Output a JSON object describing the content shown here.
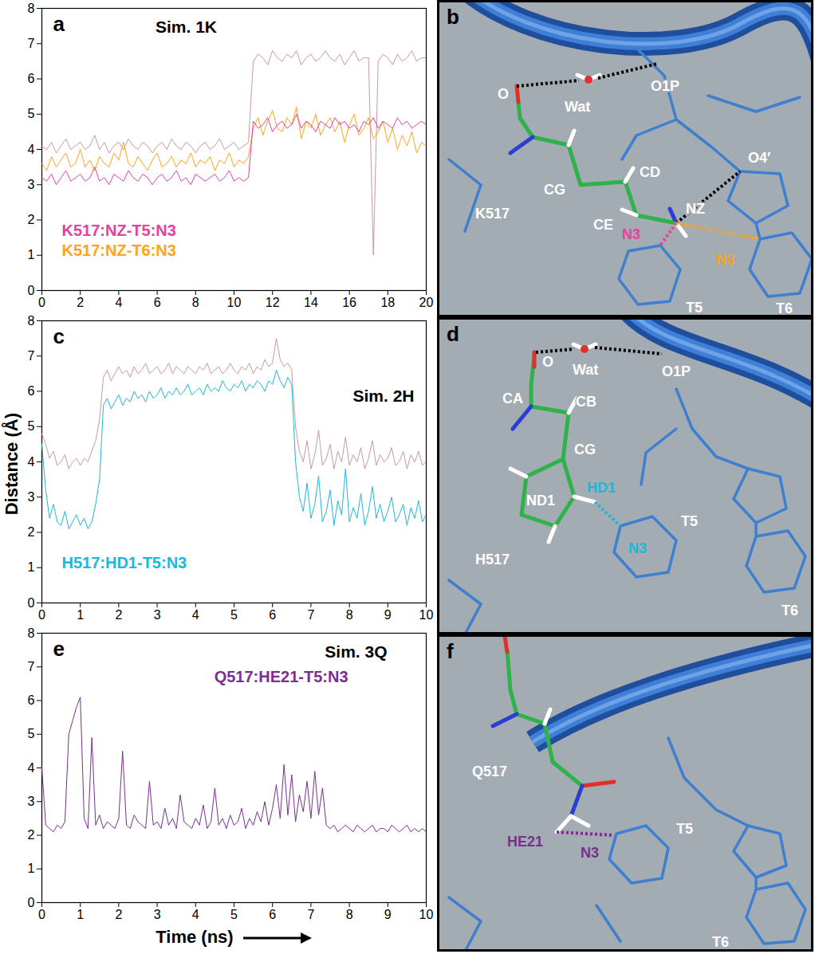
{
  "chart_data": [
    {
      "type": "line",
      "letter": "a",
      "title": "Sim. 1K",
      "x": [
        0,
        0.25,
        0.5,
        0.75,
        1,
        1.25,
        1.5,
        1.75,
        2,
        2.25,
        2.5,
        2.75,
        3,
        3.25,
        3.5,
        3.75,
        4,
        4.25,
        4.5,
        4.75,
        5,
        5.25,
        5.5,
        5.75,
        6,
        6.25,
        6.5,
        6.75,
        7,
        7.25,
        7.5,
        7.75,
        8,
        8.25,
        8.5,
        8.75,
        9,
        9.25,
        9.5,
        9.75,
        10,
        10.25,
        10.5,
        10.75,
        11,
        11.25,
        11.5,
        11.75,
        12,
        12.25,
        12.5,
        12.75,
        13,
        13.25,
        13.5,
        13.75,
        14,
        14.25,
        14.5,
        14.75,
        15,
        15.25,
        15.5,
        15.75,
        16,
        16.25,
        16.5,
        16.75,
        17,
        17.25,
        17.5,
        17.75,
        18,
        18.25,
        18.5,
        18.75,
        19,
        19.25,
        19.5,
        19.75,
        20
      ],
      "xlim": [
        0,
        20
      ],
      "xticks": [
        0,
        2,
        4,
        6,
        8,
        10,
        12,
        14,
        16,
        18,
        20
      ],
      "ylim": [
        0,
        8
      ],
      "yticks": [
        0,
        1,
        2,
        3,
        4,
        5,
        6,
        7,
        8
      ],
      "legend": "bottom-left",
      "series": [
        {
          "name": "K517:NZ-T5:N3",
          "color": "#e8409f",
          "values": [
            3.2,
            3.1,
            3.3,
            3.0,
            3.2,
            3.4,
            3.1,
            3.2,
            3.3,
            3.1,
            3.2,
            3.5,
            3.1,
            3.2,
            3.0,
            3.3,
            3.2,
            3.1,
            3.4,
            3.2,
            3.1,
            3.3,
            3.2,
            3.0,
            3.2,
            3.3,
            3.1,
            3.2,
            3.4,
            3.1,
            3.2,
            3.0,
            3.3,
            3.2,
            3.1,
            3.2,
            3.3,
            3.1,
            3.2,
            3.4,
            3.1,
            3.2,
            3.1,
            3.2,
            4.8,
            4.6,
            4.7,
            4.9,
            4.5,
            4.7,
            4.8,
            4.6,
            4.7,
            5.0,
            4.6,
            4.8,
            4.7,
            4.5,
            4.8,
            4.7,
            4.6,
            4.9,
            4.7,
            4.8,
            4.6,
            4.7,
            4.5,
            4.8,
            4.7,
            4.9,
            4.6,
            4.8,
            4.7,
            4.6,
            4.9,
            4.7,
            4.8,
            4.6,
            4.7,
            4.8,
            4.7
          ]
        },
        {
          "name": "K517:NZ-T6:N3",
          "color": "#ffa31a",
          "values": [
            3.6,
            3.4,
            3.8,
            3.5,
            3.7,
            3.9,
            3.5,
            3.6,
            4.0,
            3.5,
            3.7,
            3.4,
            3.8,
            3.6,
            3.5,
            3.9,
            3.7,
            4.2,
            3.6,
            3.5,
            3.8,
            3.6,
            3.4,
            3.7,
            3.9,
            3.5,
            3.6,
            3.8,
            3.5,
            3.7,
            3.6,
            3.9,
            3.5,
            3.7,
            3.6,
            3.8,
            3.4,
            3.7,
            3.6,
            3.9,
            3.5,
            3.7,
            3.6,
            3.8,
            4.6,
            4.9,
            4.4,
            4.8,
            5.1,
            4.6,
            4.5,
            4.9,
            4.7,
            5.2,
            4.3,
            4.8,
            4.6,
            5.0,
            4.4,
            4.7,
            4.9,
            4.5,
            4.8,
            4.2,
            4.7,
            5.0,
            4.4,
            4.6,
            4.9,
            4.3,
            4.5,
            4.8,
            4.2,
            4.6,
            4.0,
            4.4,
            4.1,
            4.5,
            3.9,
            4.2,
            4.1
          ]
        },
        {
          "color": "#c9999a",
          "values": [
            4.1,
            4.0,
            4.2,
            3.9,
            4.1,
            4.3,
            4.0,
            4.1,
            4.2,
            4.0,
            4.1,
            4.4,
            4.0,
            4.2,
            3.9,
            4.1,
            4.2,
            4.0,
            4.3,
            4.1,
            4.0,
            4.2,
            4.1,
            3.9,
            4.1,
            4.2,
            4.0,
            4.3,
            4.1,
            4.0,
            4.2,
            4.1,
            3.9,
            4.1,
            4.2,
            4.0,
            4.1,
            4.3,
            4.0,
            4.1,
            4.2,
            4.0,
            4.1,
            4.2,
            6.5,
            6.7,
            6.6,
            6.4,
            6.8,
            6.6,
            6.5,
            6.7,
            6.6,
            6.8,
            6.4,
            6.6,
            6.7,
            6.5,
            6.6,
            6.8,
            6.6,
            6.5,
            6.7,
            6.4,
            6.6,
            6.8,
            6.5,
            6.6,
            6.6,
            1.0,
            6.5,
            6.7,
            6.6,
            6.4,
            6.7,
            6.5,
            6.6,
            6.8,
            6.5,
            6.6,
            6.6
          ]
        }
      ]
    },
    {
      "type": "line",
      "letter": "c",
      "title": "Sim. 2H",
      "y_label": "Distance (Å)",
      "x": [
        0,
        0.1,
        0.2,
        0.3,
        0.4,
        0.5,
        0.6,
        0.7,
        0.8,
        0.9,
        1,
        1.1,
        1.2,
        1.3,
        1.4,
        1.5,
        1.6,
        1.7,
        1.8,
        1.9,
        2,
        2.1,
        2.2,
        2.3,
        2.4,
        2.5,
        2.6,
        2.7,
        2.8,
        2.9,
        3,
        3.1,
        3.2,
        3.3,
        3.4,
        3.5,
        3.6,
        3.7,
        3.8,
        3.9,
        4,
        4.1,
        4.2,
        4.3,
        4.4,
        4.5,
        4.6,
        4.7,
        4.8,
        4.9,
        5,
        5.1,
        5.2,
        5.3,
        5.4,
        5.5,
        5.6,
        5.7,
        5.8,
        5.9,
        6,
        6.1,
        6.2,
        6.3,
        6.4,
        6.5,
        6.6,
        6.7,
        6.8,
        6.9,
        7,
        7.1,
        7.2,
        7.3,
        7.4,
        7.5,
        7.6,
        7.7,
        7.8,
        7.9,
        8,
        8.1,
        8.2,
        8.3,
        8.4,
        8.5,
        8.6,
        8.7,
        8.8,
        8.9,
        9,
        9.1,
        9.2,
        9.3,
        9.4,
        9.5,
        9.6,
        9.7,
        9.8,
        9.9,
        10
      ],
      "xlim": [
        0,
        10
      ],
      "xticks": [
        0,
        1,
        2,
        3,
        4,
        5,
        6,
        7,
        8,
        9,
        10
      ],
      "ylim": [
        0,
        8
      ],
      "yticks": [
        0,
        1,
        2,
        3,
        4,
        5,
        6,
        7,
        8
      ],
      "legend": "bottom-left",
      "series": [
        {
          "name": "H517:HD1-T5:N3",
          "color": "#1bb8d9",
          "values": [
            4.5,
            3.2,
            2.4,
            2.8,
            2.3,
            2.2,
            2.6,
            2.1,
            2.3,
            2.5,
            2.2,
            2.4,
            2.1,
            2.3,
            2.8,
            3.5,
            5.6,
            5.8,
            5.5,
            5.7,
            5.9,
            5.6,
            5.8,
            5.7,
            6.0,
            5.8,
            5.9,
            5.7,
            6.0,
            5.8,
            5.9,
            6.1,
            5.8,
            6.0,
            5.9,
            6.1,
            5.9,
            6.0,
            6.2,
            5.9,
            6.0,
            6.1,
            5.9,
            6.2,
            6.0,
            6.1,
            6.0,
            6.3,
            6.1,
            6.0,
            6.2,
            6.1,
            6.3,
            6.0,
            6.2,
            6.1,
            6.3,
            6.2,
            6.0,
            6.3,
            6.2,
            6.6,
            6.3,
            6.1,
            6.4,
            6.2,
            4.0,
            3.0,
            2.6,
            3.4,
            2.4,
            2.8,
            3.6,
            2.3,
            2.6,
            3.2,
            2.2,
            2.9,
            2.5,
            3.8,
            2.3,
            2.7,
            2.4,
            3.1,
            2.2,
            2.6,
            3.3,
            2.4,
            2.8,
            2.3,
            2.6,
            3.0,
            2.3,
            2.5,
            2.8,
            2.2,
            2.7,
            2.4,
            2.9,
            2.3,
            2.5
          ]
        },
        {
          "color": "#c9999a",
          "values": [
            4.8,
            4.5,
            4.1,
            4.3,
            3.9,
            4.0,
            4.2,
            3.8,
            4.0,
            4.1,
            3.9,
            4.1,
            4.0,
            4.3,
            4.6,
            5.2,
            6.4,
            6.6,
            6.3,
            6.5,
            6.7,
            6.5,
            6.6,
            6.4,
            6.7,
            6.5,
            6.6,
            6.8,
            6.5,
            6.6,
            6.7,
            6.5,
            6.6,
            6.8,
            6.5,
            6.7,
            6.6,
            6.5,
            6.7,
            6.6,
            6.5,
            6.7,
            6.6,
            6.8,
            6.5,
            6.6,
            6.7,
            6.5,
            6.6,
            6.8,
            6.6,
            6.5,
            6.7,
            6.6,
            6.8,
            6.5,
            6.7,
            6.6,
            6.9,
            6.7,
            6.8,
            7.5,
            6.9,
            6.7,
            6.8,
            6.6,
            5.0,
            4.3,
            4.0,
            4.6,
            3.8,
            4.2,
            4.9,
            3.9,
            4.1,
            4.5,
            3.8,
            4.3,
            4.0,
            4.7,
            3.9,
            4.2,
            4.0,
            4.4,
            3.8,
            4.1,
            4.6,
            3.9,
            4.2,
            4.0,
            4.1,
            4.4,
            3.9,
            4.0,
            4.3,
            3.8,
            4.2,
            4.0,
            4.3,
            3.9,
            4.0
          ]
        }
      ]
    },
    {
      "type": "line",
      "letter": "e",
      "title": "Sim. 3Q",
      "x_label": "Time (ns)",
      "x": [
        0,
        0.1,
        0.2,
        0.3,
        0.4,
        0.5,
        0.6,
        0.7,
        0.8,
        0.9,
        1,
        1.1,
        1.2,
        1.3,
        1.4,
        1.5,
        1.6,
        1.7,
        1.8,
        1.9,
        2,
        2.1,
        2.2,
        2.3,
        2.4,
        2.5,
        2.6,
        2.7,
        2.8,
        2.9,
        3,
        3.1,
        3.2,
        3.3,
        3.4,
        3.5,
        3.6,
        3.7,
        3.8,
        3.9,
        4,
        4.1,
        4.2,
        4.3,
        4.4,
        4.5,
        4.6,
        4.7,
        4.8,
        4.9,
        5,
        5.1,
        5.2,
        5.3,
        5.4,
        5.5,
        5.6,
        5.7,
        5.8,
        5.9,
        6,
        6.1,
        6.2,
        6.3,
        6.4,
        6.5,
        6.6,
        6.7,
        6.8,
        6.9,
        7,
        7.1,
        7.2,
        7.3,
        7.4,
        7.5,
        7.6,
        7.7,
        7.8,
        7.9,
        8,
        8.1,
        8.2,
        8.3,
        8.4,
        8.5,
        8.6,
        8.7,
        8.8,
        8.9,
        9,
        9.1,
        9.2,
        9.3,
        9.4,
        9.5,
        9.6,
        9.7,
        9.8,
        9.9,
        10
      ],
      "xlim": [
        0,
        10
      ],
      "xticks": [
        0,
        1,
        2,
        3,
        4,
        5,
        6,
        7,
        8,
        9,
        10
      ],
      "ylim": [
        0,
        8
      ],
      "yticks": [
        0,
        1,
        2,
        3,
        4,
        5,
        6,
        7,
        8
      ],
      "legend": "top-right",
      "series": [
        {
          "name": "Q517:HE21-T5:N3",
          "color": "#7a2f90",
          "values": [
            4.0,
            2.3,
            2.2,
            2.1,
            2.3,
            2.2,
            2.4,
            5.0,
            5.4,
            5.8,
            6.1,
            2.5,
            2.2,
            4.9,
            2.3,
            2.6,
            2.2,
            2.4,
            2.3,
            2.2,
            2.5,
            4.5,
            2.3,
            2.2,
            2.6,
            2.4,
            2.3,
            2.2,
            3.6,
            2.3,
            2.4,
            2.2,
            2.8,
            2.3,
            2.5,
            2.2,
            3.2,
            2.4,
            2.3,
            2.2,
            2.5,
            2.3,
            2.9,
            2.2,
            2.4,
            3.4,
            2.3,
            2.5,
            2.2,
            2.6,
            2.3,
            2.4,
            2.8,
            2.2,
            2.5,
            2.3,
            2.7,
            2.4,
            3.0,
            2.3,
            2.8,
            3.5,
            2.5,
            4.1,
            2.6,
            3.8,
            2.4,
            3.2,
            2.7,
            3.6,
            2.5,
            3.9,
            2.6,
            3.4,
            2.3,
            2.2,
            2.3,
            2.1,
            2.2,
            2.3,
            2.2,
            2.1,
            2.3,
            2.2,
            2.1,
            2.2,
            2.3,
            2.1,
            2.2,
            2.2,
            2.1,
            2.3,
            2.2,
            2.1,
            2.2,
            2.3,
            2.1,
            2.2,
            2.1,
            2.2,
            2.1
          ]
        }
      ]
    }
  ],
  "diagrams": [
    {
      "letter": "b",
      "labels": [
        {
          "text": "O"
        },
        {
          "text": "Wat"
        },
        {
          "text": "O1P"
        },
        {
          "text": "CG"
        },
        {
          "text": "CD"
        },
        {
          "text": "CE"
        },
        {
          "text": "NZ"
        },
        {
          "text": "O4′"
        },
        {
          "text": "K517"
        },
        {
          "text": "N3",
          "color": "#e8409f"
        },
        {
          "text": "N3",
          "color": "#ffa31a"
        },
        {
          "text": "T5"
        },
        {
          "text": "T6"
        }
      ]
    },
    {
      "letter": "d",
      "labels": [
        {
          "text": "O"
        },
        {
          "text": "Wat"
        },
        {
          "text": "O1P"
        },
        {
          "text": "CA"
        },
        {
          "text": "CB"
        },
        {
          "text": "CG"
        },
        {
          "text": "ND1"
        },
        {
          "text": "HD1",
          "color": "#1bb8d9"
        },
        {
          "text": "N3",
          "color": "#1bb8d9"
        },
        {
          "text": "T5"
        },
        {
          "text": "T6"
        },
        {
          "text": "H517"
        }
      ]
    },
    {
      "letter": "f",
      "labels": [
        {
          "text": "Q517"
        },
        {
          "text": "HE21",
          "color": "#7a2f90"
        },
        {
          "text": "N3",
          "color": "#7a2f90"
        },
        {
          "text": "T5"
        },
        {
          "text": "T6"
        }
      ]
    }
  ]
}
